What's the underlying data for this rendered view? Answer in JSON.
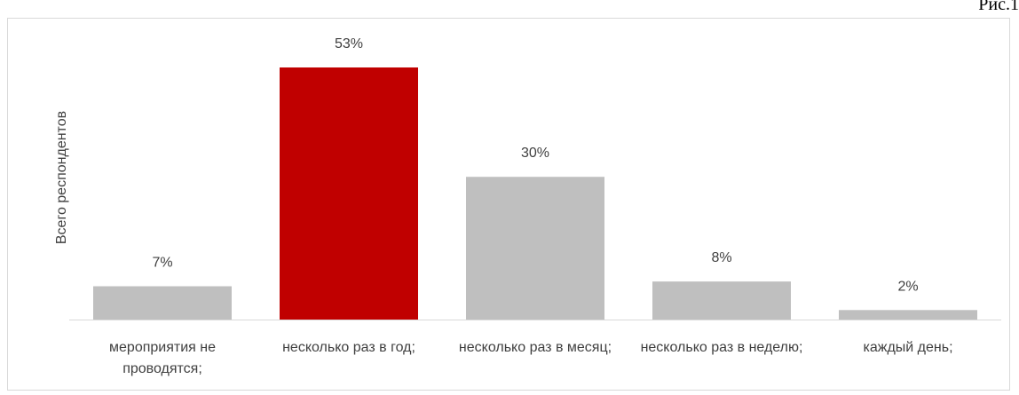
{
  "figure_label": "Рис.1",
  "chart_data": {
    "type": "bar",
    "y_axis_label": "Всего респондентов",
    "categories": [
      "мероприятия не проводятся;",
      "несколько раз в год;",
      "несколько раз в месяц;",
      "несколько раз в неделю;",
      "каждый день;"
    ],
    "values": [
      7,
      53,
      30,
      8,
      2
    ],
    "value_labels": [
      "7%",
      "53%",
      "30%",
      "8%",
      "2%"
    ],
    "colors": [
      "#bfbfbf",
      "#c00000",
      "#bfbfbf",
      "#bfbfbf",
      "#bfbfbf"
    ]
  }
}
